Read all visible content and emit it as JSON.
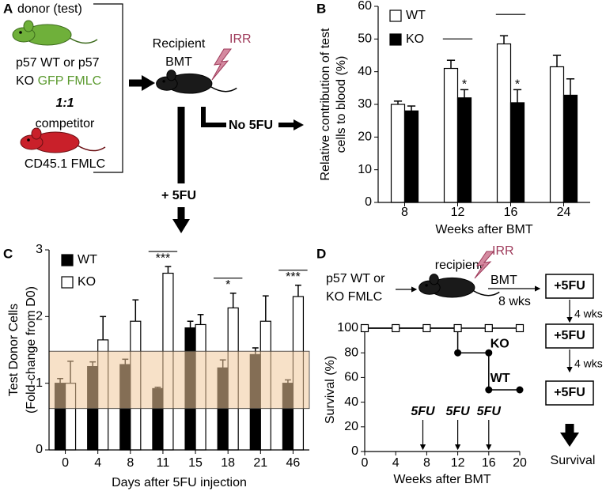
{
  "diagram_a": {
    "label": "A",
    "donor": "donor (test)",
    "donor_line1": "p57 WT or p57",
    "donor_line2_a": "KO",
    "donor_line2_b": "GFP FMLC",
    "ratio": "1:1",
    "competitor": "competitor",
    "competitor_line": "CD45.1 FMLC",
    "recipient": "Recipient",
    "bmt": "BMT",
    "irr": "IRR",
    "no_5fu": "No 5FU",
    "plus_5fu": "+ 5FU"
  },
  "diagram_d": {
    "donor_line1": "p57 WT or",
    "donor_line2": "KO  FMLC",
    "recipient": "recipient",
    "irr": "IRR",
    "bmt": "BMT",
    "interval": "8 wks",
    "steps": [
      "+5FU",
      "+5FU",
      "+5FU"
    ],
    "gaps": [
      "4 wks",
      "4 wks"
    ],
    "outcome": "Survival"
  },
  "chart_data": [
    {
      "type": "bar",
      "panel_label": "B",
      "ylabel": [
        "Relative contribution of test",
        "cells to blood (%)"
      ],
      "xlabel": "Weeks after BMT",
      "categories": [
        "8",
        "12",
        "16",
        "24"
      ],
      "series": [
        {
          "name": "WT",
          "color": "#ffffff",
          "values": [
            30,
            41,
            48.5,
            41.5
          ],
          "errors": [
            1,
            2.5,
            2.5,
            3.5
          ]
        },
        {
          "name": "KO",
          "color": "#000000",
          "values": [
            28,
            32,
            30.5,
            32.8
          ],
          "errors": [
            1.5,
            2.5,
            4,
            5
          ]
        }
      ],
      "significance": [
        null,
        "*",
        "*",
        null
      ],
      "ylim": [
        0,
        60
      ],
      "yticks": [
        0,
        10,
        20,
        30,
        40,
        50,
        60
      ],
      "legend": "upper left"
    },
    {
      "type": "bar",
      "panel_label": "C",
      "ylabel": [
        "Test Donor Cells",
        "(Fold-change from D0)"
      ],
      "xlabel": "Days after 5FU injection",
      "categories": [
        "0",
        "4",
        "8",
        "11",
        "15",
        "18",
        "21",
        "46"
      ],
      "series": [
        {
          "name": "WT",
          "color": "#000000",
          "values": [
            1.0,
            1.25,
            1.28,
            0.92,
            1.83,
            1.23,
            1.43,
            1.0
          ],
          "errors": [
            0.07,
            0.07,
            0.08,
            0.02,
            0.1,
            0.12,
            0.1,
            0.05
          ]
        },
        {
          "name": "KO",
          "color": "#ffffff",
          "values": [
            1.0,
            1.65,
            1.93,
            2.65,
            1.88,
            2.13,
            1.93,
            2.3
          ],
          "errors": [
            0.33,
            0.35,
            0.32,
            0.1,
            0.15,
            0.22,
            0.38,
            0.17
          ]
        }
      ],
      "significance": [
        null,
        null,
        null,
        "***",
        null,
        "*",
        null,
        "***"
      ],
      "band": {
        "range": [
          0.62,
          1.48
        ],
        "color": "#f0c89a"
      },
      "ylim": [
        0,
        3
      ],
      "yticks": [
        0,
        1,
        2,
        3
      ],
      "legend": "upper left"
    },
    {
      "type": "line",
      "panel_label": "D",
      "ylabel": "Survival (%)",
      "xlabel": "Weeks after BMT",
      "series": [
        {
          "name": "WT",
          "color": "#000000",
          "marker": "circle",
          "x": [
            0,
            4,
            8,
            12,
            12,
            16,
            16,
            20
          ],
          "values": [
            100,
            100,
            100,
            100,
            80,
            80,
            50,
            50
          ]
        },
        {
          "name": "KO",
          "color": "#000000",
          "marker": "square",
          "x": [
            0,
            4,
            8,
            12,
            16,
            20
          ],
          "values": [
            100,
            100,
            100,
            100,
            100,
            100
          ]
        }
      ],
      "annotations": [
        {
          "text": "5FU",
          "x": 7.5
        },
        {
          "text": "5FU",
          "x": 12
        },
        {
          "text": "5FU",
          "x": 16
        }
      ],
      "xlim": [
        0,
        20
      ],
      "xticks": [
        0,
        4,
        8,
        12,
        16,
        20
      ],
      "ylim": [
        0,
        100
      ],
      "yticks": [
        0,
        20,
        40,
        60,
        80,
        100
      ]
    }
  ]
}
